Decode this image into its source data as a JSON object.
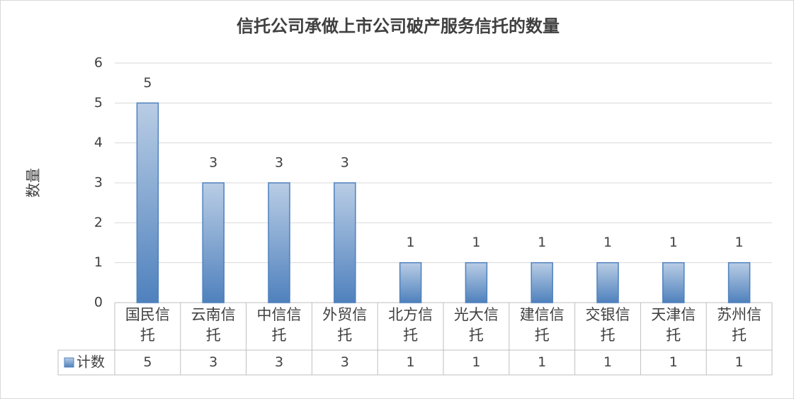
{
  "chart_data": {
    "type": "bar",
    "title": "信托公司承做上市公司破产服务信托的数量",
    "y_label": "数量",
    "categories": [
      "国民信托",
      "云南信托",
      "中信信托",
      "外贸信托",
      "北方信托",
      "光大信托",
      "建信信托",
      "交银信托",
      "天津信托",
      "苏州信托"
    ],
    "series": [
      {
        "name": "计数",
        "color": "#4f81bd",
        "values": [
          5,
          3,
          3,
          3,
          1,
          1,
          1,
          1,
          1,
          1
        ]
      }
    ],
    "ylim": [
      0,
      6
    ],
    "yticks": [
      0,
      1,
      2,
      3,
      4,
      5,
      6
    ],
    "grid": true,
    "data_table": true
  }
}
